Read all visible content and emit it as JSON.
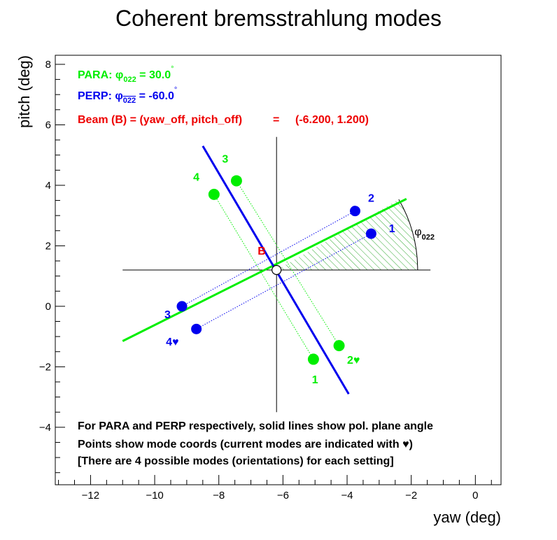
{
  "chart_data": {
    "type": "scatter",
    "title": "Coherent bremsstrahlung modes",
    "xlabel": "yaw (deg)",
    "ylabel": "pitch (deg)",
    "xlim": [
      -13.1,
      0.8
    ],
    "ylim": [
      -5.9,
      8.3
    ],
    "x_ticks": [
      -12,
      -10,
      -8,
      -6,
      -4,
      -2,
      0
    ],
    "y_ticks": [
      -4,
      -2,
      0,
      2,
      4,
      6,
      8
    ],
    "x_tick_labels": [
      "−12",
      "−10",
      "−8",
      "−6",
      "−4",
      "−2",
      "0"
    ],
    "y_tick_labels": [
      "−4",
      "−2",
      "0",
      "2",
      "4",
      "6",
      "8"
    ],
    "beam": {
      "x": -6.2,
      "y": 1.2,
      "label": "B"
    },
    "axes_cross": {
      "x_range": [
        -11.0,
        -1.4
      ],
      "y_range": [
        -3.5,
        5.6
      ]
    },
    "phi_label": {
      "base": "φ",
      "sub": "022",
      "x": -1.9,
      "y": 2.35
    },
    "arc": {
      "radius": 4.4,
      "from_deg": 0,
      "to_deg": 30
    },
    "series": [
      {
        "name": "PARA",
        "color": "#00ee00",
        "line": {
          "x1": -11.0,
          "y1": -1.15,
          "x2": -2.15,
          "y2": 3.55
        },
        "points": [
          {
            "x": -5.05,
            "y": -1.75,
            "label": "1",
            "lx": -5.0,
            "ly": -2.55,
            "current": false
          },
          {
            "x": -4.25,
            "y": -1.3,
            "label": "2",
            "lx": -3.8,
            "ly": -1.9,
            "current": true
          },
          {
            "x": -7.45,
            "y": 4.15,
            "label": "3",
            "lx": -7.8,
            "ly": 4.75,
            "current": false
          },
          {
            "x": -8.15,
            "y": 3.7,
            "label": "4",
            "lx": -8.7,
            "ly": 4.15,
            "current": false
          }
        ]
      },
      {
        "name": "PERP",
        "color": "#0000ee",
        "line": {
          "x1": -8.5,
          "y1": 5.3,
          "x2": -3.95,
          "y2": -2.9
        },
        "points": [
          {
            "x": -3.25,
            "y": 2.4,
            "label": "1",
            "lx": -2.6,
            "ly": 2.45,
            "current": false
          },
          {
            "x": -3.75,
            "y": 3.15,
            "label": "2",
            "lx": -3.25,
            "ly": 3.45,
            "current": false
          },
          {
            "x": -9.15,
            "y": 0.0,
            "label": "3",
            "lx": -9.6,
            "ly": -0.4,
            "current": false
          },
          {
            "x": -8.7,
            "y": -0.75,
            "label": "4",
            "lx": -9.45,
            "ly": -1.3,
            "current": true
          }
        ]
      }
    ]
  },
  "legend": {
    "para": {
      "prefix": "PARA: ",
      "phi": "φ",
      "sub": "022",
      "value": " = 30.0",
      "deg": "°",
      "color": "#00ee00"
    },
    "perp": {
      "prefix": "PERP: ",
      "phi": "φ",
      "sub": "022",
      "value": " = -60.0",
      "deg": "°",
      "color": "#0000ee"
    },
    "beam_line": {
      "label": "Beam (B) = (yaw_off, pitch_off)",
      "eq": "=",
      "value": "(-6.200, 1.200)",
      "color": "#ee0000"
    }
  },
  "notes": [
    "For PARA and PERP respectively, solid lines show pol. plane angle",
    "Points show mode coords (current modes are indicated with ♥)",
    "[There are 4 possible modes (orientations) for each setting]"
  ],
  "current_marker": "♥"
}
